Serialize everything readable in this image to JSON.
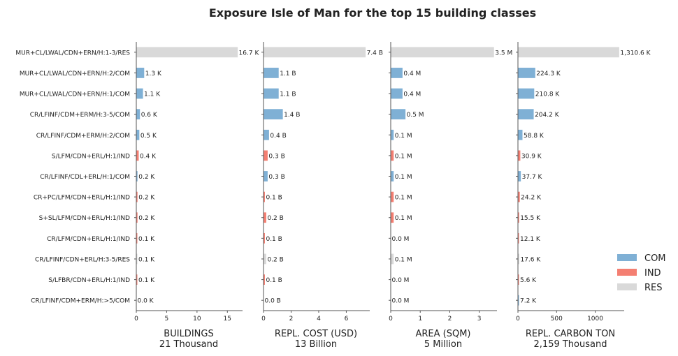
{
  "title": "Exposure Isle of Man for the top 15 building classes",
  "colors": {
    "COM": "#7fb0d5",
    "IND": "#f47f72",
    "RES": "#d9d9d9",
    "axis": "#555555",
    "text": "#222222"
  },
  "legend": {
    "placement": "bottom-right",
    "entries": [
      {
        "label": "COM",
        "color": "#7fb0d5"
      },
      {
        "label": "IND",
        "color": "#f47f72"
      },
      {
        "label": "RES",
        "color": "#d9d9d9"
      }
    ]
  },
  "categories": [
    "MUR+CL/LWAL/CDN+ERN/H:1-3/RES",
    "MUR+CL/LWAL/CDN+ERN/H:2/COM",
    "MUR+CL/LWAL/CDN+ERN/H:1/COM",
    "CR/LFINF/CDM+ERM/H:3-5/COM",
    "CR/LFINF/CDM+ERM/H:2/COM",
    "S/LFM/CDN+ERL/H:1/IND",
    "CR/LFINF/CDL+ERL/H:1/COM",
    "CR+PC/LFM/CDN+ERL/H:1/IND",
    "S+SL/LFM/CDN+ERL/H:1/IND",
    "CR/LFM/CDN+ERL/H:1/IND",
    "CR/LFINF/CDN+ERL/H:3-5/RES",
    "S/LFBR/CDN+ERL/H:1/IND",
    "CR/LFINF/CDM+ERM/H:>5/COM"
  ],
  "occupancy": [
    "RES",
    "COM",
    "COM",
    "COM",
    "COM",
    "IND",
    "COM",
    "IND",
    "IND",
    "IND",
    "RES",
    "IND",
    "COM"
  ],
  "chart_data": [
    {
      "type": "bar",
      "xlabel": "BUILDINGS",
      "xsublabel": "21 Thousand",
      "xlim": [
        0,
        17.5
      ],
      "xticks": [
        0,
        5,
        10,
        15
      ],
      "values": [
        16.7,
        1.3,
        1.1,
        0.6,
        0.5,
        0.4,
        0.2,
        0.2,
        0.2,
        0.1,
        0.1,
        0.1,
        0.0
      ],
      "labels": [
        "16.7 K",
        "1.3 K",
        "1.1 K",
        "0.6 K",
        "0.5 K",
        "0.4 K",
        "0.2 K",
        "0.2 K",
        "0.2 K",
        "0.1 K",
        "0.1 K",
        "0.1 K",
        "0.0 K"
      ]
    },
    {
      "type": "bar",
      "xlabel": "REPL. COST (USD)",
      "xsublabel": "13 Billion",
      "xlim": [
        0,
        7.7
      ],
      "xticks": [
        0,
        2,
        4,
        6
      ],
      "values": [
        7.4,
        1.1,
        1.1,
        1.4,
        0.4,
        0.3,
        0.3,
        0.1,
        0.2,
        0.1,
        0.2,
        0.1,
        0.0
      ],
      "labels": [
        "7.4 B",
        "1.1 B",
        "1.1 B",
        "1.4 B",
        "0.4 B",
        "0.3 B",
        "0.3 B",
        "0.1 B",
        "0.2 B",
        "0.1 B",
        "0.2 B",
        "0.1 B",
        "0.0 B"
      ]
    },
    {
      "type": "bar",
      "xlabel": "AREA (SQM)",
      "xsublabel": "5 Million",
      "xlim": [
        0,
        3.6
      ],
      "xticks": [
        0,
        1,
        2,
        3
      ],
      "values": [
        3.5,
        0.4,
        0.4,
        0.5,
        0.1,
        0.1,
        0.1,
        0.1,
        0.1,
        0.0,
        0.1,
        0.0,
        0.0
      ],
      "labels": [
        "3.5 M",
        "0.4 M",
        "0.4 M",
        "0.5 M",
        "0.1 M",
        "0.1 M",
        "0.1 M",
        "0.1 M",
        "0.1 M",
        "0.0 M",
        "0.1 M",
        "0.0 M",
        "0.0 M"
      ]
    },
    {
      "type": "bar",
      "xlabel": "REPL. CARBON TON",
      "xsublabel": "2,159 Thousand",
      "xlim": [
        0,
        1375
      ],
      "xticks": [
        0,
        500,
        1000
      ],
      "values": [
        1310.6,
        224.3,
        210.8,
        204.2,
        58.8,
        30.9,
        37.7,
        24.2,
        15.5,
        12.1,
        17.6,
        5.6,
        7.2
      ],
      "labels": [
        "1,310.6 K",
        "224.3 K",
        "210.8 K",
        "204.2 K",
        "58.8 K",
        "30.9 K",
        "37.7 K",
        "24.2 K",
        "15.5 K",
        "12.1 K",
        "17.6 K",
        "5.6 K",
        "7.2 K"
      ]
    }
  ]
}
